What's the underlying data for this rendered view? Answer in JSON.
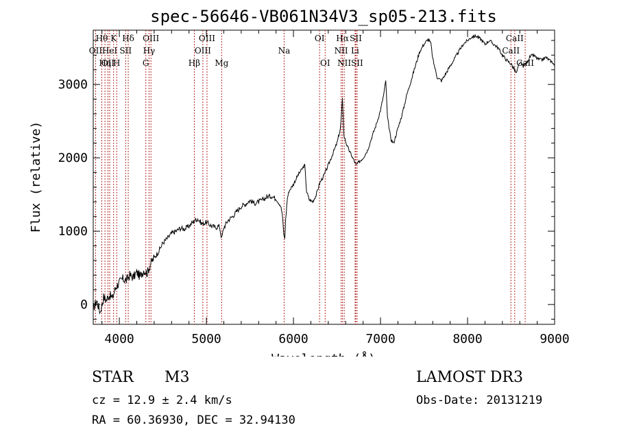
{
  "chart_data": {
    "type": "line",
    "title": "spec-56646-VB061N34V3_sp05-213.fits",
    "xlabel": "Wavelength (Å)",
    "ylabel": "Flux (relative)",
    "xlim": [
      3700,
      9000
    ],
    "ylim": [
      -270,
      3740
    ],
    "xticks": [
      4000,
      5000,
      6000,
      7000,
      8000,
      9000
    ],
    "yticks": [
      0,
      1000,
      2000,
      3000
    ],
    "x_minor_step": 200,
    "y_minor_step": 200,
    "series": [
      {
        "name": "spectrum",
        "points": [
          [
            3700,
            -50
          ],
          [
            3740,
            50
          ],
          [
            3780,
            -100
          ],
          [
            3820,
            100
          ],
          [
            3850,
            60
          ],
          [
            3880,
            130
          ],
          [
            3920,
            90
          ],
          [
            3960,
            240
          ],
          [
            4000,
            300
          ],
          [
            4040,
            350
          ],
          [
            4080,
            330
          ],
          [
            4120,
            400
          ],
          [
            4160,
            370
          ],
          [
            4200,
            440
          ],
          [
            4240,
            380
          ],
          [
            4280,
            470
          ],
          [
            4320,
            430
          ],
          [
            4360,
            560
          ],
          [
            4400,
            640
          ],
          [
            4450,
            720
          ],
          [
            4500,
            840
          ],
          [
            4550,
            900
          ],
          [
            4600,
            970
          ],
          [
            4650,
            1000
          ],
          [
            4700,
            1040
          ],
          [
            4750,
            1030
          ],
          [
            4800,
            1070
          ],
          [
            4850,
            1130
          ],
          [
            4900,
            1170
          ],
          [
            4950,
            1100
          ],
          [
            5000,
            1120
          ],
          [
            5050,
            1080
          ],
          [
            5100,
            1050
          ],
          [
            5150,
            1070
          ],
          [
            5175,
            900
          ],
          [
            5200,
            1050
          ],
          [
            5250,
            1150
          ],
          [
            5300,
            1200
          ],
          [
            5350,
            1270
          ],
          [
            5400,
            1340
          ],
          [
            5450,
            1370
          ],
          [
            5500,
            1420
          ],
          [
            5550,
            1380
          ],
          [
            5600,
            1400
          ],
          [
            5650,
            1430
          ],
          [
            5700,
            1470
          ],
          [
            5750,
            1480
          ],
          [
            5800,
            1440
          ],
          [
            5850,
            1350
          ],
          [
            5870,
            1250
          ],
          [
            5890,
            950
          ],
          [
            5900,
            900
          ],
          [
            5910,
            1150
          ],
          [
            5930,
            1450
          ],
          [
            5950,
            1550
          ],
          [
            6000,
            1640
          ],
          [
            6050,
            1760
          ],
          [
            6100,
            1850
          ],
          [
            6130,
            1900
          ],
          [
            6150,
            1550
          ],
          [
            6180,
            1430
          ],
          [
            6220,
            1400
          ],
          [
            6260,
            1490
          ],
          [
            6300,
            1650
          ],
          [
            6350,
            1760
          ],
          [
            6400,
            1900
          ],
          [
            6450,
            2050
          ],
          [
            6500,
            2200
          ],
          [
            6540,
            2400
          ],
          [
            6563,
            2800
          ],
          [
            6580,
            2300
          ],
          [
            6620,
            2150
          ],
          [
            6680,
            2000
          ],
          [
            6720,
            1900
          ],
          [
            6760,
            1950
          ],
          [
            6800,
            2000
          ],
          [
            6850,
            2100
          ],
          [
            6900,
            2280
          ],
          [
            6950,
            2450
          ],
          [
            7000,
            2650
          ],
          [
            7040,
            2880
          ],
          [
            7060,
            3060
          ],
          [
            7080,
            2550
          ],
          [
            7120,
            2250
          ],
          [
            7150,
            2200
          ],
          [
            7200,
            2400
          ],
          [
            7250,
            2600
          ],
          [
            7300,
            2850
          ],
          [
            7350,
            3050
          ],
          [
            7400,
            3250
          ],
          [
            7450,
            3450
          ],
          [
            7500,
            3550
          ],
          [
            7550,
            3620
          ],
          [
            7580,
            3550
          ],
          [
            7600,
            3350
          ],
          [
            7650,
            3100
          ],
          [
            7700,
            3050
          ],
          [
            7750,
            3150
          ],
          [
            7800,
            3250
          ],
          [
            7850,
            3350
          ],
          [
            7900,
            3450
          ],
          [
            7950,
            3550
          ],
          [
            8000,
            3600
          ],
          [
            8050,
            3650
          ],
          [
            8100,
            3660
          ],
          [
            8150,
            3620
          ],
          [
            8200,
            3550
          ],
          [
            8250,
            3600
          ],
          [
            8300,
            3550
          ],
          [
            8350,
            3500
          ],
          [
            8400,
            3400
          ],
          [
            8450,
            3330
          ],
          [
            8500,
            3280
          ],
          [
            8540,
            3200
          ],
          [
            8560,
            3150
          ],
          [
            8600,
            3300
          ],
          [
            8640,
            3250
          ],
          [
            8680,
            3300
          ],
          [
            8720,
            3380
          ],
          [
            8760,
            3400
          ],
          [
            8800,
            3350
          ],
          [
            8850,
            3330
          ],
          [
            8900,
            3370
          ],
          [
            8950,
            3320
          ],
          [
            8980,
            3300
          ],
          [
            9000,
            3250
          ]
        ]
      }
    ],
    "lines": [
      {
        "wave": 3727,
        "label": "OII",
        "row": 1
      },
      {
        "wave": 3798,
        "label": "Hθ",
        "row": 0
      },
      {
        "wave": 3835,
        "label": "Hη",
        "row": 2
      },
      {
        "wave": 3869,
        "label": "OII",
        "row": 2
      },
      {
        "wave": 3889,
        "label": "HeI",
        "row": 1
      },
      {
        "wave": 3934,
        "label": "K",
        "row": 0
      },
      {
        "wave": 3970,
        "label": "H",
        "row": 2
      },
      {
        "wave": 4072,
        "label": "SII",
        "row": 1
      },
      {
        "wave": 4102,
        "label": "Hδ",
        "row": 0
      },
      {
        "wave": 4304,
        "label": "G",
        "row": 2
      },
      {
        "wave": 4341,
        "label": "Hγ",
        "row": 1
      },
      {
        "wave": 4363,
        "label": "OIII",
        "row": 0
      },
      {
        "wave": 4861,
        "label": "Hβ",
        "row": 2
      },
      {
        "wave": 4959,
        "label": "OIII",
        "row": 1
      },
      {
        "wave": 5007,
        "label": "OIII",
        "row": 0
      },
      {
        "wave": 5175,
        "label": "Mg",
        "row": 2
      },
      {
        "wave": 5893,
        "label": "Na",
        "row": 1
      },
      {
        "wave": 6300,
        "label": "OI",
        "row": 0
      },
      {
        "wave": 6364,
        "label": "OI",
        "row": 2
      },
      {
        "wave": 6548,
        "label": "NII",
        "row": 1
      },
      {
        "wave": 6563,
        "label": "Hα",
        "row": 0
      },
      {
        "wave": 6583,
        "label": "NII",
        "row": 2
      },
      {
        "wave": 6708,
        "label": "Li",
        "row": 1
      },
      {
        "wave": 6716,
        "label": "SII",
        "row": 0
      },
      {
        "wave": 6731,
        "label": "SII",
        "row": 2
      },
      {
        "wave": 8498,
        "label": "CaII",
        "row": 1
      },
      {
        "wave": 8542,
        "label": "CaII",
        "row": 0
      },
      {
        "wave": 8662,
        "label": "CaII",
        "row": 2
      }
    ]
  },
  "info": {
    "class": "STAR",
    "subclass": "M3",
    "survey": "LAMOST DR3",
    "cz": "cz = 12.9 ± 2.4 km/s",
    "obs_date": "Obs-Date: 20131219",
    "coords": "RA =  60.36930, DEC =  32.94130"
  }
}
